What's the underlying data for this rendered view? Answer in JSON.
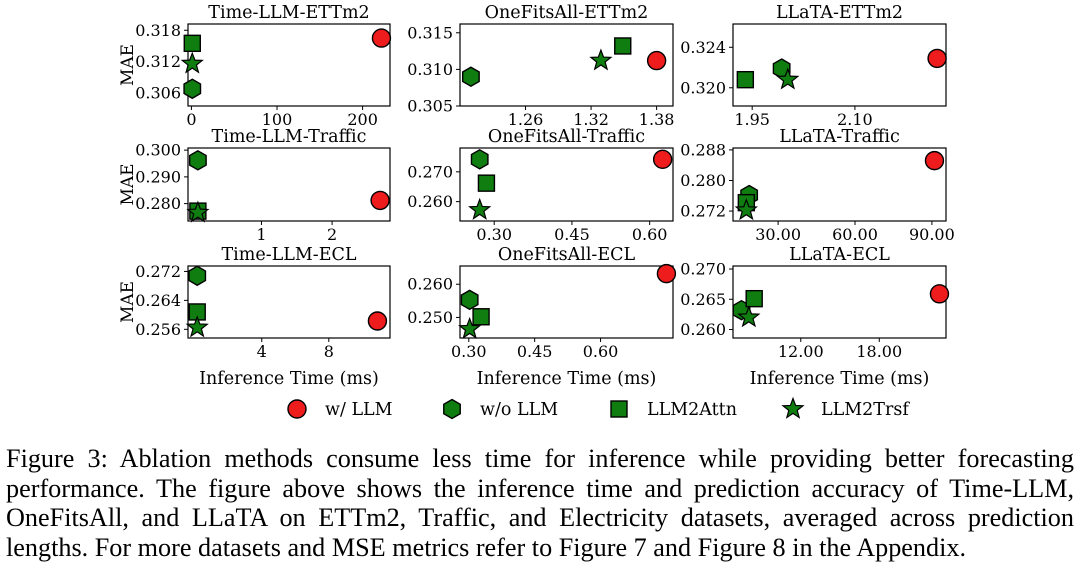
{
  "colors": {
    "llm": "#ee1c1c",
    "green": "#0f7d0f",
    "stroke": "#000000"
  },
  "legend": [
    {
      "label": "w/ LLM",
      "marker": "circle",
      "color": "#ee1c1c"
    },
    {
      "label": "w/o LLM",
      "marker": "hexagon",
      "color": "#0f7d0f"
    },
    {
      "label": "LLM2Attn",
      "marker": "square",
      "color": "#0f7d0f"
    },
    {
      "label": "LLM2Trsf",
      "marker": "star",
      "color": "#0f7d0f"
    }
  ],
  "caption": "Figure 3: Ablation methods consume less time for inference while providing better forecasting performance. The figure above shows the inference time and prediction accuracy of Time-LLM, OneFitsAll, and LLaTA on ETTm2, Traffic, and Electricity datasets, averaged across prediction lengths. For more datasets and MSE metrics refer to Figure 7 and Figure 8 in the Appendix.",
  "chart_data": [
    {
      "type": "scatter",
      "title": "Time-LLM-ETTm2",
      "xlabel": "",
      "ylabel": "MAE",
      "xlim": [
        -4,
        232
      ],
      "ylim": [
        0.3035,
        0.3192
      ],
      "xticks": [
        0,
        100,
        200
      ],
      "xticklabels": [
        "0",
        "100",
        "200"
      ],
      "yticks": [
        0.306,
        0.312,
        0.318
      ],
      "yticklabels": [
        "0.306",
        "0.312",
        "0.318"
      ],
      "points": {
        "w/ LLM": [
          222,
          0.3165
        ],
        "w/o LLM": [
          1,
          0.3068
        ],
        "LLM2Attn": [
          1,
          0.3155
        ],
        "LLM2Trsf": [
          1,
          0.3116
        ]
      }
    },
    {
      "type": "scatter",
      "title": "OneFitsAll-ETTm2",
      "xlabel": "",
      "ylabel": "",
      "xlim": [
        1.2,
        1.395
      ],
      "ylim": [
        0.305,
        0.3162
      ],
      "xticks": [
        1.26,
        1.32,
        1.38
      ],
      "xticklabels": [
        "1.26",
        "1.32",
        "1.38"
      ],
      "yticks": [
        0.305,
        0.31,
        0.315
      ],
      "yticklabels": [
        "0.305",
        "0.310",
        "0.315"
      ],
      "points": {
        "w/ LLM": [
          1.38,
          0.3112
        ],
        "w/o LLM": [
          1.21,
          0.309
        ],
        "LLM2Attn": [
          1.349,
          0.3132
        ],
        "LLM2Trsf": [
          1.329,
          0.3112
        ]
      }
    },
    {
      "type": "scatter",
      "title": "LLaTA-ETTm2",
      "xlabel": "",
      "ylabel": "",
      "xlim": [
        1.922,
        2.233
      ],
      "ylim": [
        0.3182,
        0.3263
      ],
      "xticks": [
        1.95,
        2.1
      ],
      "xticklabels": [
        "1.95",
        "2.10"
      ],
      "yticks": [
        0.32,
        0.324
      ],
      "yticklabels": [
        "0.320",
        "0.324"
      ],
      "points": {
        "w/ LLM": [
          2.22,
          0.3229
        ],
        "w/o LLM": [
          1.993,
          0.3219
        ],
        "LLM2Attn": [
          1.94,
          0.3208
        ],
        "LLM2Trsf": [
          2.002,
          0.3208
        ]
      }
    },
    {
      "type": "scatter",
      "title": "Time-LLM-Traffic",
      "xlabel": "",
      "ylabel": "MAE",
      "xlim": [
        -0.04,
        2.82
      ],
      "ylim": [
        0.2735,
        0.3008
      ],
      "xticks": [
        1,
        2
      ],
      "xticklabels": [
        "1",
        "2"
      ],
      "yticks": [
        0.28,
        0.29,
        0.3
      ],
      "yticklabels": [
        "0.280",
        "0.290",
        "0.300"
      ],
      "points": {
        "w/ LLM": [
          2.68,
          0.2812
        ],
        "w/o LLM": [
          0.1,
          0.2962
        ],
        "LLM2Attn": [
          0.1,
          0.2772
        ],
        "LLM2Trsf": [
          0.1,
          0.2766
        ]
      }
    },
    {
      "type": "scatter",
      "title": "OneFitsAll-Traffic",
      "xlabel": "",
      "ylabel": "",
      "xlim": [
        0.234,
        0.645
      ],
      "ylim": [
        0.2535,
        0.278
      ],
      "xticks": [
        0.3,
        0.45,
        0.6
      ],
      "xticklabels": [
        "0.30",
        "0.45",
        "0.60"
      ],
      "yticks": [
        0.26,
        0.27
      ],
      "yticklabels": [
        "0.260",
        "0.270"
      ],
      "points": {
        "w/ LLM": [
          0.625,
          0.2742
        ],
        "w/o LLM": [
          0.272,
          0.2742
        ],
        "LLM2Attn": [
          0.285,
          0.2662
        ],
        "LLM2Trsf": [
          0.272,
          0.2572
        ]
      }
    },
    {
      "type": "scatter",
      "title": "LLaTA-Traffic",
      "xlabel": "",
      "ylabel": "",
      "xlim": [
        12.4,
        95.5
      ],
      "ylim": [
        0.2694,
        0.2885
      ],
      "xticks": [
        30,
        60,
        90
      ],
      "xticklabels": [
        "30.00",
        "60.00",
        "90.00"
      ],
      "yticks": [
        0.272,
        0.28,
        0.288
      ],
      "yticklabels": [
        "0.272",
        "0.280",
        "0.288"
      ],
      "points": {
        "w/ LLM": [
          91,
          0.2852
        ],
        "w/o LLM": [
          18.7,
          0.2762
        ],
        "LLM2Attn": [
          17.6,
          0.2742
        ],
        "LLM2Trsf": [
          17.6,
          0.2722
        ]
      }
    },
    {
      "type": "scatter",
      "title": "Time-LLM-ECL",
      "xlabel": "Inference Time (ms)",
      "ylabel": "MAE",
      "xlim": [
        -0.4,
        11.65
      ],
      "ylim": [
        0.2536,
        0.2735
      ],
      "xticks": [
        4,
        8
      ],
      "xticklabels": [
        "4",
        "8"
      ],
      "yticks": [
        0.256,
        0.264,
        0.272
      ],
      "yticklabels": [
        "0.256",
        "0.264",
        "0.272"
      ],
      "points": {
        "w/ LLM": [
          10.9,
          0.2583
        ],
        "w/o LLM": [
          0.15,
          0.2708
        ],
        "LLM2Attn": [
          0.15,
          0.2608
        ],
        "LLM2Trsf": [
          0.15,
          0.2565
        ]
      }
    },
    {
      "type": "scatter",
      "title": "OneFitsAll-ECL",
      "xlabel": "Inference Time (ms)",
      "ylabel": "",
      "xlim": [
        0.28,
        0.765
      ],
      "ylim": [
        0.2438,
        0.2655
      ],
      "xticks": [
        0.3,
        0.45,
        0.6
      ],
      "xticklabels": [
        "0.30",
        "0.45",
        "0.60"
      ],
      "yticks": [
        0.25,
        0.26
      ],
      "yticklabels": [
        "0.250",
        "0.260"
      ],
      "points": {
        "w/ LLM": [
          0.75,
          0.2632
        ],
        "w/o LLM": [
          0.302,
          0.2553
        ],
        "LLM2Attn": [
          0.328,
          0.2502
        ],
        "LLM2Trsf": [
          0.302,
          0.2465
        ]
      }
    },
    {
      "type": "scatter",
      "title": "LLaTA-ECL",
      "xlabel": "Inference Time (ms)",
      "ylabel": "",
      "xlim": [
        6.82,
        23.1
      ],
      "ylim": [
        0.2586,
        0.2705
      ],
      "xticks": [
        12,
        18
      ],
      "xticklabels": [
        "12.00",
        "18.00"
      ],
      "yticks": [
        0.26,
        0.265,
        0.27
      ],
      "yticklabels": [
        "0.260",
        "0.265",
        "0.270"
      ],
      "points": {
        "w/ LLM": [
          22.6,
          0.2659
        ],
        "w/o LLM": [
          7.47,
          0.2632
        ],
        "LLM2Attn": [
          8.44,
          0.2651
        ],
        "LLM2Trsf": [
          8.03,
          0.262
        ]
      }
    }
  ]
}
